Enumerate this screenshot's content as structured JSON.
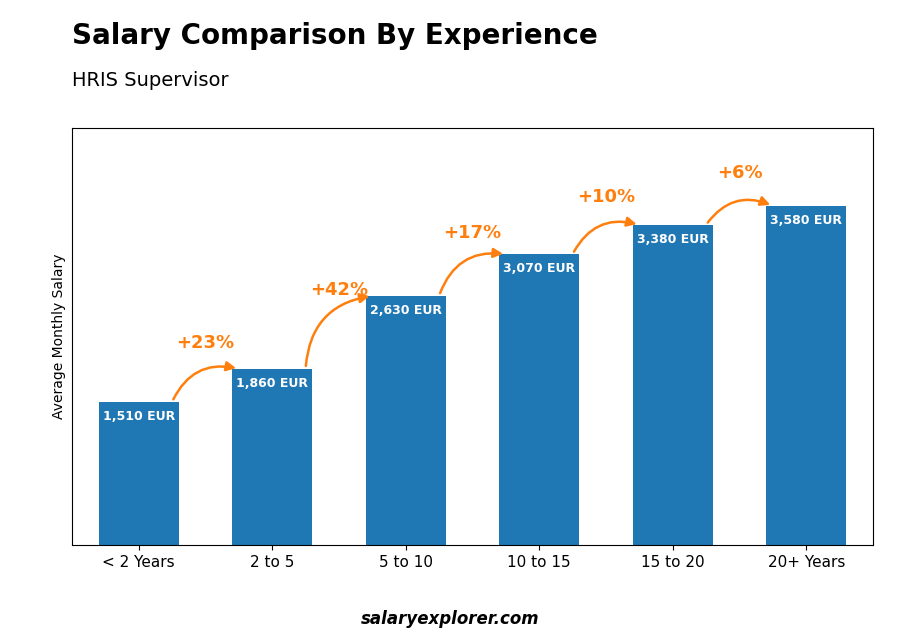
{
  "chart_data": {
    "type": "bar",
    "title": "Salary Comparison By Experience",
    "subtitle": "HRIS Supervisor",
    "ylabel": "Average Monthly Salary",
    "categories": [
      "< 2 Years",
      "2 to 5",
      "5 to 10",
      "10 to 15",
      "15 to 20",
      "20+ Years"
    ],
    "values": [
      1510,
      1860,
      2630,
      3070,
      3380,
      3580
    ],
    "value_labels": [
      "1,510 EUR",
      "1,860 EUR",
      "2,630 EUR",
      "3,070 EUR",
      "3,380 EUR",
      "3,580 EUR"
    ],
    "data_labels": true,
    "annotations": [
      "+23%",
      "+42%",
      "+17%",
      "+10%",
      "+6%"
    ],
    "footer": "salaryexplorer.com",
    "ylim": [
      0,
      4400
    ],
    "tick_labels": "x"
  }
}
